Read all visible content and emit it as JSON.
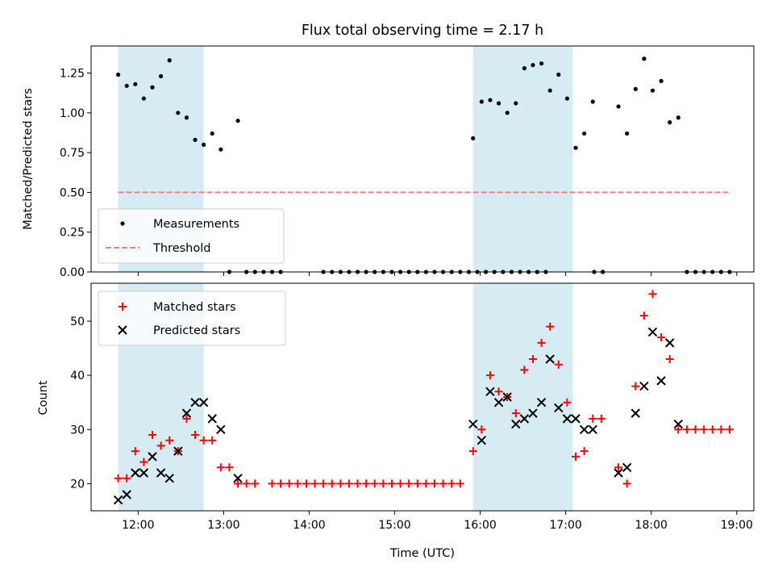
{
  "chart_data": [
    {
      "type": "scatter",
      "title": "Flux total observing time = 2.17 h",
      "xlabel": "",
      "ylabel": "Matched/Predicted stars",
      "xlim": [
        "11:27",
        "19:12"
      ],
      "ylim": [
        0,
        1.42
      ],
      "yticks": [
        0.0,
        0.25,
        0.5,
        0.75,
        1.0,
        1.25
      ],
      "ytick_labels": [
        "0.00",
        "0.25",
        "0.50",
        "0.75",
        "1.00",
        "1.25"
      ],
      "legend_position": "lower-left",
      "grid": false,
      "shaded_intervals": [
        [
          "11:46",
          "12:46"
        ],
        [
          "15:55",
          "17:05"
        ]
      ],
      "threshold": {
        "name": "Threshold",
        "value": 0.5,
        "x_start": "11:46",
        "x_end": "18:55",
        "color": "#f08080",
        "style": "dashed"
      },
      "series": [
        {
          "name": "Measurements",
          "marker": "dot",
          "color": "#000000",
          "points": [
            [
              "11:46",
              1.24
            ],
            [
              "11:52",
              1.17
            ],
            [
              "11:58",
              1.18
            ],
            [
              "12:04",
              1.09
            ],
            [
              "12:10",
              1.16
            ],
            [
              "12:16",
              1.23
            ],
            [
              "12:22",
              1.33
            ],
            [
              "12:28",
              1.0
            ],
            [
              "12:34",
              0.97
            ],
            [
              "12:40",
              0.83
            ],
            [
              "12:46",
              0.8
            ],
            [
              "12:52",
              0.87
            ],
            [
              "12:58",
              0.77
            ],
            [
              "13:04",
              0.0
            ],
            [
              "13:10",
              0.95
            ],
            [
              "13:16",
              0.0
            ],
            [
              "13:22",
              0.0
            ],
            [
              "13:28",
              0.0
            ],
            [
              "13:34",
              0.0
            ],
            [
              "13:40",
              0.0
            ],
            [
              "14:10",
              0.0
            ],
            [
              "14:16",
              0.0
            ],
            [
              "14:22",
              0.0
            ],
            [
              "14:28",
              0.0
            ],
            [
              "14:34",
              0.0
            ],
            [
              "14:40",
              0.0
            ],
            [
              "14:46",
              0.0
            ],
            [
              "14:52",
              0.0
            ],
            [
              "14:58",
              0.0
            ],
            [
              "15:04",
              0.0
            ],
            [
              "15:10",
              0.0
            ],
            [
              "15:16",
              0.0
            ],
            [
              "15:22",
              0.0
            ],
            [
              "15:28",
              0.0
            ],
            [
              "15:34",
              0.0
            ],
            [
              "15:40",
              0.0
            ],
            [
              "15:46",
              0.0
            ],
            [
              "15:52",
              0.0
            ],
            [
              "15:58",
              0.0
            ],
            [
              "16:04",
              0.0
            ],
            [
              "16:10",
              0.0
            ],
            [
              "16:16",
              0.0
            ],
            [
              "16:22",
              0.0
            ],
            [
              "16:28",
              0.0
            ],
            [
              "16:34",
              0.0
            ],
            [
              "16:40",
              0.0
            ],
            [
              "16:46",
              0.0
            ],
            [
              "15:55",
              0.84
            ],
            [
              "16:01",
              1.07
            ],
            [
              "16:07",
              1.08
            ],
            [
              "16:13",
              1.06
            ],
            [
              "16:19",
              1.0
            ],
            [
              "16:25",
              1.06
            ],
            [
              "16:31",
              1.28
            ],
            [
              "16:37",
              1.3
            ],
            [
              "16:43",
              1.31
            ],
            [
              "16:49",
              1.14
            ],
            [
              "16:55",
              1.24
            ],
            [
              "17:01",
              1.09
            ],
            [
              "17:07",
              0.78
            ],
            [
              "17:13",
              0.87
            ],
            [
              "17:19",
              1.07
            ],
            [
              "17:20",
              0.0
            ],
            [
              "17:26",
              0.0
            ],
            [
              "17:37",
              1.04
            ],
            [
              "17:43",
              0.87
            ],
            [
              "17:49",
              1.15
            ],
            [
              "17:55",
              1.34
            ],
            [
              "18:01",
              1.14
            ],
            [
              "18:07",
              1.2
            ],
            [
              "18:13",
              0.94
            ],
            [
              "18:19",
              0.97
            ],
            [
              "18:25",
              0.0
            ],
            [
              "18:31",
              0.0
            ],
            [
              "18:37",
              0.0
            ],
            [
              "18:43",
              0.0
            ],
            [
              "18:49",
              0.0
            ],
            [
              "18:55",
              0.0
            ]
          ]
        }
      ]
    },
    {
      "type": "scatter",
      "title": "",
      "xlabel": "Time (UTC)",
      "ylabel": "Count",
      "xlim": [
        "11:27",
        "19:12"
      ],
      "ylim": [
        15,
        57
      ],
      "yticks": [
        20,
        30,
        40,
        50
      ],
      "xticks": [
        "12:00",
        "13:00",
        "14:00",
        "15:00",
        "16:00",
        "17:00",
        "18:00",
        "19:00"
      ],
      "legend_position": "upper-left",
      "grid": false,
      "shaded_intervals": [
        [
          "11:46",
          "12:46"
        ],
        [
          "15:55",
          "17:05"
        ]
      ],
      "series": [
        {
          "name": "Matched stars",
          "marker": "plus",
          "color": "#ff0000",
          "points": [
            [
              "11:46",
              21
            ],
            [
              "11:52",
              21
            ],
            [
              "11:58",
              26
            ],
            [
              "12:04",
              24
            ],
            [
              "12:10",
              29
            ],
            [
              "12:16",
              27
            ],
            [
              "12:22",
              28
            ],
            [
              "12:28",
              26
            ],
            [
              "12:34",
              32
            ],
            [
              "12:40",
              29
            ],
            [
              "12:46",
              28
            ],
            [
              "12:52",
              28
            ],
            [
              "12:58",
              23
            ],
            [
              "13:04",
              23
            ],
            [
              "13:10",
              20
            ],
            [
              "13:16",
              20
            ],
            [
              "13:22",
              20
            ],
            [
              "13:34",
              20
            ],
            [
              "13:40",
              20
            ],
            [
              "13:46",
              20
            ],
            [
              "13:52",
              20
            ],
            [
              "13:58",
              20
            ],
            [
              "14:04",
              20
            ],
            [
              "14:10",
              20
            ],
            [
              "14:16",
              20
            ],
            [
              "14:22",
              20
            ],
            [
              "14:28",
              20
            ],
            [
              "14:34",
              20
            ],
            [
              "14:40",
              20
            ],
            [
              "14:46",
              20
            ],
            [
              "14:52",
              20
            ],
            [
              "14:58",
              20
            ],
            [
              "15:04",
              20
            ],
            [
              "15:10",
              20
            ],
            [
              "15:16",
              20
            ],
            [
              "15:22",
              20
            ],
            [
              "15:28",
              20
            ],
            [
              "15:34",
              20
            ],
            [
              "15:40",
              20
            ],
            [
              "15:46",
              20
            ],
            [
              "15:55",
              26
            ],
            [
              "16:01",
              30
            ],
            [
              "16:07",
              40
            ],
            [
              "16:13",
              37
            ],
            [
              "16:19",
              36
            ],
            [
              "16:25",
              33
            ],
            [
              "16:31",
              41
            ],
            [
              "16:37",
              43
            ],
            [
              "16:43",
              46
            ],
            [
              "16:49",
              49
            ],
            [
              "16:55",
              42
            ],
            [
              "17:01",
              35
            ],
            [
              "17:07",
              25
            ],
            [
              "17:13",
              26
            ],
            [
              "17:19",
              32
            ],
            [
              "17:25",
              32
            ],
            [
              "17:37",
              23
            ],
            [
              "17:43",
              20
            ],
            [
              "17:49",
              38
            ],
            [
              "17:55",
              51
            ],
            [
              "18:01",
              55
            ],
            [
              "18:07",
              47
            ],
            [
              "18:13",
              43
            ],
            [
              "18:19",
              30
            ],
            [
              "18:25",
              30
            ],
            [
              "18:31",
              30
            ],
            [
              "18:37",
              30
            ],
            [
              "18:43",
              30
            ],
            [
              "18:49",
              30
            ],
            [
              "18:55",
              30
            ]
          ]
        },
        {
          "name": "Predicted stars",
          "marker": "x",
          "color": "#000000",
          "points": [
            [
              "11:46",
              17
            ],
            [
              "11:52",
              18
            ],
            [
              "11:58",
              22
            ],
            [
              "12:04",
              22
            ],
            [
              "12:10",
              25
            ],
            [
              "12:16",
              22
            ],
            [
              "12:22",
              21
            ],
            [
              "12:28",
              26
            ],
            [
              "12:34",
              33
            ],
            [
              "12:40",
              35
            ],
            [
              "12:46",
              35
            ],
            [
              "12:52",
              32
            ],
            [
              "12:58",
              30
            ],
            [
              "13:10",
              21
            ],
            [
              "15:55",
              31
            ],
            [
              "16:01",
              28
            ],
            [
              "16:07",
              37
            ],
            [
              "16:13",
              35
            ],
            [
              "16:19",
              36
            ],
            [
              "16:25",
              31
            ],
            [
              "16:31",
              32
            ],
            [
              "16:37",
              33
            ],
            [
              "16:43",
              35
            ],
            [
              "16:49",
              43
            ],
            [
              "16:55",
              34
            ],
            [
              "17:01",
              32
            ],
            [
              "17:07",
              32
            ],
            [
              "17:13",
              30
            ],
            [
              "17:19",
              30
            ],
            [
              "17:37",
              22
            ],
            [
              "17:43",
              23
            ],
            [
              "17:49",
              33
            ],
            [
              "17:55",
              38
            ],
            [
              "18:01",
              48
            ],
            [
              "18:07",
              39
            ],
            [
              "18:13",
              46
            ],
            [
              "18:19",
              31
            ]
          ]
        }
      ]
    }
  ]
}
